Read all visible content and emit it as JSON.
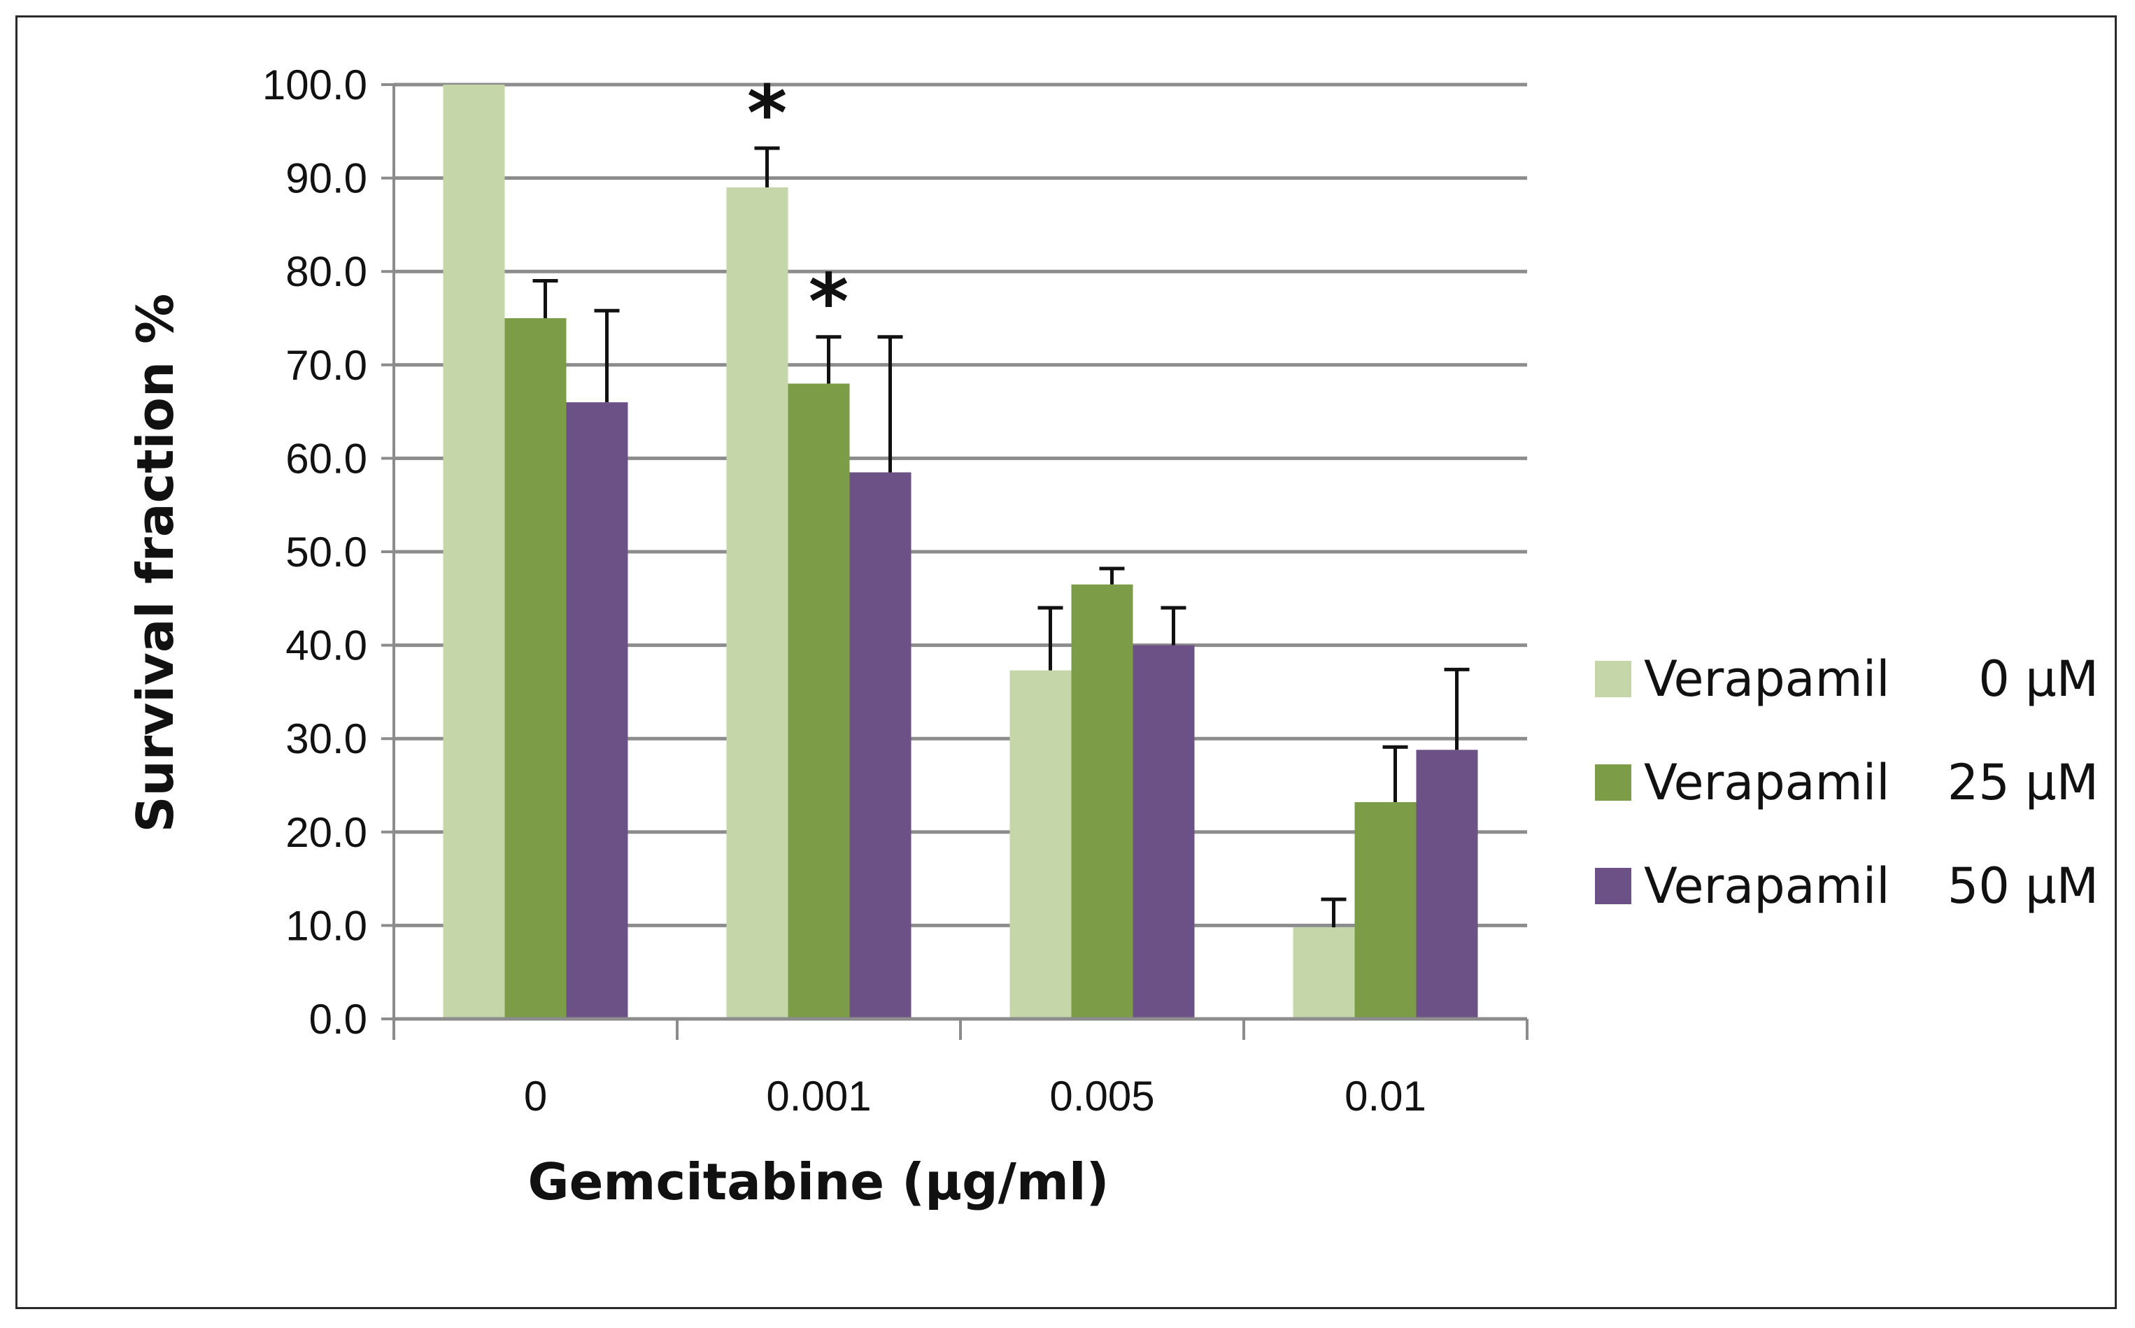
{
  "chart_data": {
    "type": "bar",
    "title": "",
    "xlabel": "Gemcitabine (µg/ml)",
    "ylabel": "Survival fraction %",
    "ylim": [
      0,
      100
    ],
    "ytick_step": 10,
    "ytick_labels": [
      "0.0",
      "10.0",
      "20.0",
      "30.0",
      "40.0",
      "50.0",
      "60.0",
      "70.0",
      "80.0",
      "90.0",
      "100.0"
    ],
    "grid": true,
    "legend_position": "right",
    "categories": [
      "0",
      "0.001",
      "0.005",
      "0.01"
    ],
    "series": [
      {
        "name": "Verapamil  0 µM",
        "label_main": "Verapamil",
        "label_dose": "0 µM",
        "color": "#c5d7a9",
        "values": [
          100.0,
          89.0,
          37.3,
          9.8
        ],
        "errors": [
          0.0,
          4.2,
          6.7,
          3.0
        ]
      },
      {
        "name": "Verapamil  25 µM",
        "label_main": "Verapamil",
        "label_dose": "25 µM",
        "color": "#7c9c47",
        "values": [
          75.0,
          68.0,
          46.5,
          23.2
        ],
        "errors": [
          4.0,
          5.0,
          1.7,
          5.9
        ]
      },
      {
        "name": "Verapamil  50 µM",
        "label_main": "Verapamil",
        "label_dose": "50 µM",
        "color": "#6c5187",
        "values": [
          66.0,
          58.5,
          40.0,
          28.8
        ],
        "errors": [
          9.8,
          14.5,
          4.0,
          8.6
        ]
      }
    ],
    "annotations": [
      {
        "text": "*",
        "category_index": 1,
        "series_index": 0
      },
      {
        "text": "*",
        "category_index": 1,
        "series_index": 1
      }
    ]
  }
}
